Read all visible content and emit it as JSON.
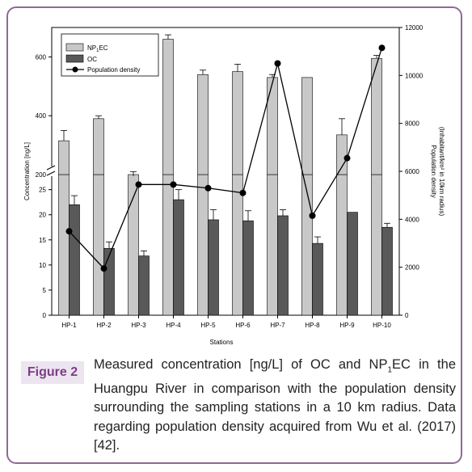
{
  "figure": {
    "label": "Figure 2",
    "caption_pre": "Measured concentration [ng/L] of OC and NP",
    "caption_sub": "1",
    "caption_post": "EC in the Huangpu River in comparison with the population density surrounding the sampling stations in a 10 km radius. Data regarding population density acquired from Wu et al. (2017) [42]."
  },
  "colors": {
    "np1ec_bar": "#c8c8c8",
    "oc_bar": "#595959",
    "line": "#000000",
    "frame_border": "#8e6a93",
    "label_bg": "#ece5ef",
    "label_text": "#7c3d87"
  },
  "chart_data": {
    "type": "bar",
    "categories": [
      "HP-1",
      "HP-2",
      "HP-3",
      "HP-4",
      "HP-5",
      "HP-6",
      "HP-7",
      "HP-8",
      "HP-9",
      "HP-10"
    ],
    "xlabel": "Stations",
    "ylabel": "Concentration [ng/L]",
    "y2label_line1": "Population density",
    "y2label_line2": "(Inhabitant/km² in 10km radius)",
    "y_axis_break": true,
    "y_lower_range": [
      0,
      28
    ],
    "y_upper_range": [
      200,
      700
    ],
    "y_lower_ticks": [
      0,
      5,
      10,
      15,
      20,
      25
    ],
    "y_upper_ticks": [
      200,
      400,
      600
    ],
    "y2_range": [
      0,
      12000
    ],
    "y2_ticks": [
      0,
      2000,
      4000,
      6000,
      8000,
      10000,
      12000
    ],
    "legend_position": "top-left",
    "legend": [
      "NP1EC",
      "OC",
      "Population density"
    ],
    "series": [
      {
        "name": "NP1EC",
        "kind": "bar",
        "axis": "left-upper",
        "values": [
          315,
          390,
          195,
          660,
          540,
          550,
          530,
          530,
          335,
          595
        ],
        "errors": [
          35,
          10,
          15,
          15,
          15,
          25,
          10,
          0,
          55,
          10
        ]
      },
      {
        "name": "OC",
        "kind": "bar",
        "axis": "left-lower",
        "values": [
          22,
          13.3,
          11.8,
          23,
          19,
          18.8,
          19.8,
          14.3,
          20.5,
          17.5
        ],
        "errors": [
          1.8,
          1.3,
          1.0,
          2.0,
          2.0,
          2.0,
          1.2,
          1.3,
          0,
          0.8
        ]
      },
      {
        "name": "Population density",
        "kind": "line",
        "axis": "right",
        "values": [
          3500,
          1950,
          5450,
          5450,
          5300,
          5100,
          10500,
          4150,
          6550,
          11150
        ]
      }
    ]
  }
}
